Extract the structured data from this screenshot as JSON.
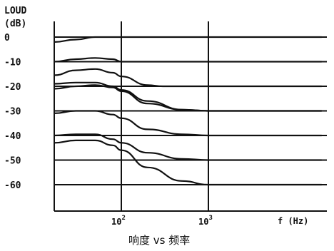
{
  "chart_data": {
    "type": "line",
    "ylabel_line1": "LOUD",
    "ylabel_line2": "(dB)",
    "xlabel": "f (Hz)",
    "x_scale": "log",
    "xlim": [
      20,
      20000
    ],
    "ylim": [
      -70,
      5
    ],
    "y_ticks": [
      {
        "value": 0,
        "label": "0"
      },
      {
        "value": -10,
        "label": "-10"
      },
      {
        "value": -20,
        "label": "-20"
      },
      {
        "value": -30,
        "label": "-30"
      },
      {
        "value": -40,
        "label": "-40"
      },
      {
        "value": -50,
        "label": "-50"
      },
      {
        "value": -60,
        "label": "-60"
      }
    ],
    "x_ticks": [
      {
        "value": 100,
        "base": "10",
        "exp": "2"
      },
      {
        "value": 1000,
        "base": "10",
        "exp": "3"
      }
    ],
    "grid": true,
    "caption": "响度 vs 频率",
    "series": [
      {
        "x": [
          20,
          30,
          50,
          80,
          100,
          200,
          20000
        ],
        "y": [
          -2,
          -1,
          0,
          0,
          0,
          0,
          0
        ]
      },
      {
        "x": [
          20,
          30,
          50,
          80,
          100,
          150,
          200,
          300,
          20000
        ],
        "y": [
          -10,
          -9,
          -8.5,
          -9,
          -10,
          -10,
          -10,
          -10,
          -10
        ]
      },
      {
        "x": [
          20,
          30,
          50,
          80,
          100,
          200,
          300,
          500,
          1000,
          20000
        ],
        "y": [
          -15.5,
          -13.5,
          -13,
          -14.5,
          -16,
          -19.5,
          -20,
          -20,
          -20,
          -20
        ]
      },
      {
        "x": [
          20,
          30,
          50,
          80,
          100,
          200,
          500,
          1000,
          20000
        ],
        "y": [
          -19,
          -18.5,
          -18.5,
          -20,
          -21.5,
          -26,
          -29.5,
          -30,
          -30
        ]
      },
      {
        "x": [
          20,
          30,
          50,
          80,
          100,
          200,
          500,
          1000,
          20000
        ],
        "y": [
          -21,
          -20,
          -19.5,
          -20.5,
          -22,
          -27,
          -29.5,
          -30,
          -30
        ]
      },
      {
        "x": [
          20,
          30,
          50,
          80,
          100,
          200,
          500,
          1000,
          20000
        ],
        "y": [
          -31,
          -30,
          -30,
          -31.5,
          -33,
          -37.5,
          -39.5,
          -40,
          -40
        ]
      },
      {
        "x": [
          20,
          30,
          50,
          80,
          100,
          200,
          500,
          1000,
          20000
        ],
        "y": [
          -40,
          -39.5,
          -39.5,
          -41.5,
          -43,
          -47,
          -49.5,
          -50,
          -50
        ]
      },
      {
        "x": [
          20,
          30,
          50,
          80,
          100,
          200,
          500,
          1000,
          20000
        ],
        "y": [
          -43,
          -42,
          -42,
          -44,
          -46,
          -53,
          -58.5,
          -60,
          -60
        ]
      }
    ]
  }
}
